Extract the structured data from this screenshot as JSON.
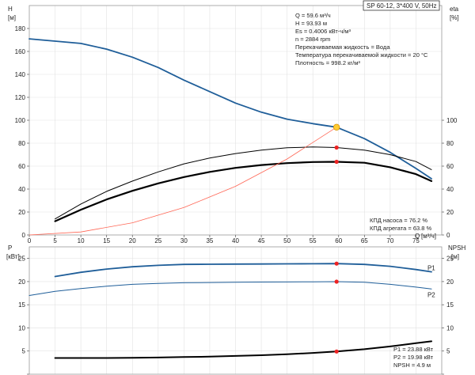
{
  "chart_data": [
    {
      "type": "line",
      "title": "SP 60-12, 3*400 V, 50Hz",
      "ylabel_left": "H",
      "ylabel_left_unit": "[м]",
      "ylabel_right": "eta",
      "ylabel_right_unit": "[%]",
      "xlabel": "Q",
      "xlabel_unit": "[м³/ч]",
      "xlim": [
        0,
        80
      ],
      "ylim_left": [
        0,
        200
      ],
      "ylim_right": [
        0,
        200
      ],
      "x_ticks": [
        0,
        5,
        10,
        15,
        20,
        25,
        30,
        35,
        40,
        45,
        50,
        55,
        60,
        65,
        70,
        75
      ],
      "y_ticks_left": [
        0,
        20,
        40,
        60,
        80,
        100,
        120,
        140,
        160,
        180
      ],
      "y_ticks_right": [
        0,
        20,
        40,
        60,
        80,
        100
      ],
      "grid": true,
      "info_lines": [
        "Q = 59.6 м³/ч",
        "H = 93.93 м",
        "Es = 0.4006 кВт-ч/м³",
        "n = 2884 rpm",
        "Перекачиваемая жидкость = Вода",
        "Температура перекачиваемой жидкости = 20 °C",
        "Плотность = 998.2 кг/м³"
      ],
      "efficiency_lines": [
        "КПД насоса = 76.2 %",
        "КПД агрегата = 63.8 %"
      ],
      "series": [
        {
          "color": "#1f5e99",
          "x": [
            0,
            5,
            10,
            15,
            20,
            25,
            30,
            35,
            40,
            45,
            50,
            55,
            59.6,
            65,
            70,
            75,
            78
          ],
          "values": [
            171,
            169,
            167,
            162,
            155,
            146,
            135,
            125,
            115,
            107,
            101,
            97,
            93.9,
            84,
            72,
            58,
            49
          ]
        },
        {
          "color": "#000000",
          "x": [
            5,
            10,
            15,
            20,
            25,
            30,
            35,
            40,
            45,
            50,
            55,
            59.6,
            65,
            70,
            75,
            78
          ],
          "values": [
            14,
            27,
            38,
            47,
            55,
            62,
            67,
            71,
            74,
            76,
            76.7,
            76.2,
            74,
            70,
            64,
            57
          ]
        },
        {
          "color": "#000000",
          "x": [
            5,
            10,
            15,
            20,
            25,
            30,
            35,
            40,
            45,
            50,
            55,
            59.6,
            65,
            70,
            75,
            78
          ],
          "values": [
            12,
            22,
            31,
            38.5,
            45,
            50.5,
            55,
            58.5,
            61,
            62.6,
            63.6,
            63.8,
            63,
            59,
            53,
            47
          ]
        },
        {
          "color": "#ff6655",
          "x": [
            0,
            10,
            20,
            30,
            40,
            50,
            59.6
          ],
          "values": [
            0,
            2.6,
            10.6,
            23.9,
            42.4,
            66.2,
            93.93
          ]
        }
      ],
      "operating_point": {
        "x": 59.6,
        "values": [
          93.93,
          76.2,
          63.8
        ]
      }
    },
    {
      "type": "line",
      "ylabel_left": "P",
      "ylabel_left_unit": "[кВт]",
      "ylabel_right": "NPSH",
      "ylabel_right_unit": "[м]",
      "xlim": [
        0,
        80
      ],
      "ylim_left": [
        0,
        27.5
      ],
      "ylim_right": [
        0,
        27.5
      ],
      "y_ticks_left": [
        0,
        5,
        10,
        15,
        20,
        25
      ],
      "y_ticks_right": [
        0,
        5,
        10,
        15,
        20,
        25
      ],
      "grid": true,
      "result_lines": [
        "P1 = 23.88 кВт",
        "P2 = 19.98 кВт",
        "NPSH = 4.9 м"
      ],
      "series": [
        {
          "name": "P1",
          "color": "#1f5e99",
          "x": [
            5,
            10,
            15,
            20,
            25,
            30,
            35,
            40,
            45,
            50,
            55,
            59.6,
            65,
            70,
            75,
            78
          ],
          "values": [
            21.1,
            22.0,
            22.7,
            23.2,
            23.5,
            23.7,
            23.75,
            23.78,
            23.8,
            23.82,
            23.85,
            23.88,
            23.7,
            23.3,
            22.6,
            22.1
          ]
        },
        {
          "name": "P2",
          "color": "#1f5e99",
          "x": [
            0,
            5,
            10,
            15,
            20,
            25,
            30,
            35,
            40,
            45,
            50,
            55,
            59.6,
            65,
            70,
            75,
            78
          ],
          "values": [
            17.0,
            17.9,
            18.5,
            19.0,
            19.4,
            19.6,
            19.75,
            19.8,
            19.85,
            19.9,
            19.92,
            19.95,
            19.98,
            19.85,
            19.4,
            18.8,
            18.4
          ]
        },
        {
          "color": "#000000",
          "x": [
            5,
            10,
            15,
            20,
            25,
            30,
            35,
            40,
            45,
            50,
            55,
            59.6,
            65,
            70,
            75,
            78
          ],
          "values": [
            3.5,
            3.5,
            3.5,
            3.55,
            3.6,
            3.7,
            3.8,
            3.95,
            4.1,
            4.3,
            4.6,
            4.9,
            5.4,
            6.0,
            6.7,
            7.1
          ]
        }
      ],
      "operating_point": {
        "x": 59.6,
        "values": [
          23.88,
          19.98,
          4.9
        ]
      }
    }
  ]
}
